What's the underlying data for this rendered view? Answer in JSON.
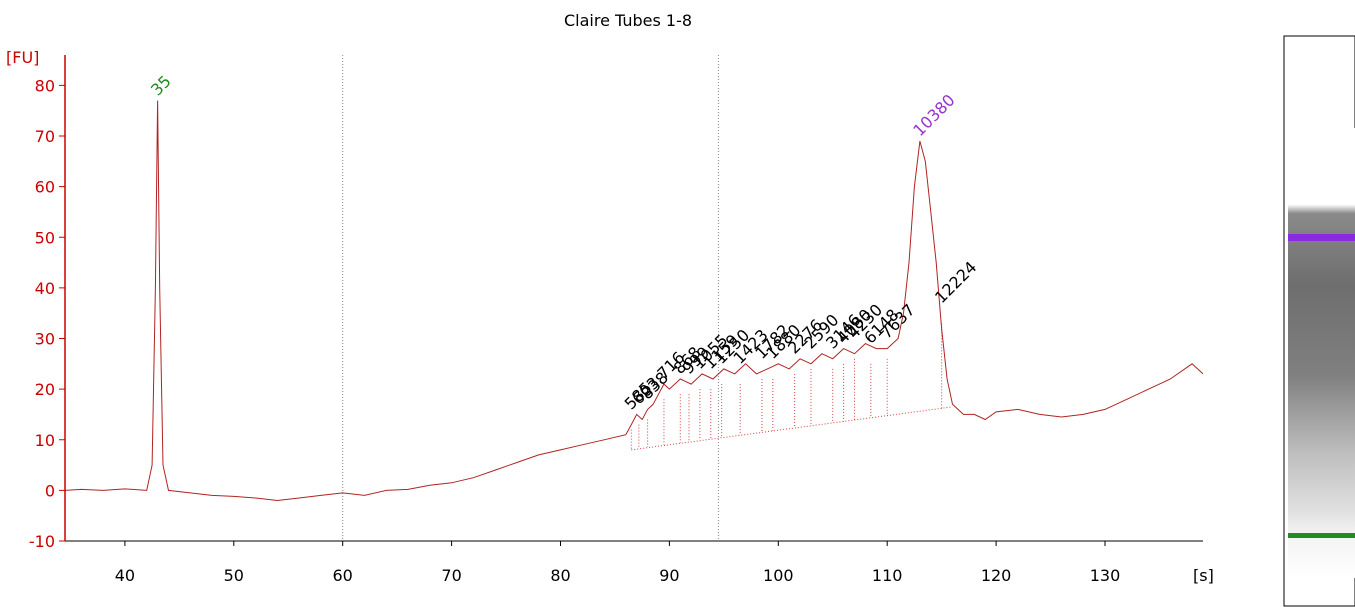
{
  "chart_data": {
    "type": "line",
    "title": "Claire Tubes 1-8",
    "y_unit": "[FU]",
    "x_unit": "[s]",
    "xlim": [
      34.5,
      139
    ],
    "ylim": [
      -10,
      86
    ],
    "x_ticks": [
      "40",
      "50",
      "60",
      "70",
      "80",
      "90",
      "100",
      "110",
      "120",
      "130"
    ],
    "y_ticks": [
      "-10",
      "0",
      "10",
      "20",
      "30",
      "40",
      "50",
      "60",
      "70",
      "80"
    ],
    "x_tick_values": [
      40,
      50,
      60,
      70,
      80,
      90,
      100,
      110,
      120,
      130
    ],
    "y_tick_values": [
      -10,
      0,
      10,
      20,
      30,
      40,
      50,
      60,
      70,
      80
    ],
    "region_markers": [
      60,
      94.5
    ],
    "series": [
      {
        "color": "#b22222",
        "x": [
          34.5,
          36,
          38,
          40,
          42,
          42.5,
          42.8,
          43.0,
          43.2,
          43.5,
          44,
          46,
          48,
          50,
          52,
          54,
          56,
          58,
          60,
          62,
          64,
          66,
          68,
          70,
          72,
          74,
          76,
          78,
          80,
          82,
          84,
          86,
          86.5,
          87,
          87.5,
          88,
          88.5,
          89,
          89.5,
          90,
          91,
          92,
          93,
          94,
          95,
          96,
          97,
          98,
          99,
          100,
          101,
          102,
          103,
          104,
          105,
          106,
          107,
          108,
          109,
          110,
          111,
          111.5,
          112,
          112.5,
          113,
          113.5,
          114,
          114.5,
          115,
          115.5,
          116,
          117,
          118,
          119,
          120,
          122,
          124,
          126,
          128,
          130,
          132,
          134,
          136,
          138,
          139
        ],
        "y": [
          0,
          0.2,
          0,
          0.3,
          0,
          5,
          40,
          77,
          40,
          5,
          0,
          -0.5,
          -1,
          -1.2,
          -1.5,
          -2,
          -1.5,
          -1,
          -0.5,
          -1,
          0,
          0.2,
          1,
          1.5,
          2.5,
          4,
          5.5,
          7,
          8,
          9,
          10,
          11,
          13,
          15,
          14,
          16,
          17,
          19,
          21,
          20,
          22,
          21,
          23,
          22,
          24,
          23,
          25,
          23,
          24,
          25,
          24,
          26,
          25,
          27,
          26,
          28,
          27,
          29,
          28,
          28,
          30,
          35,
          45,
          60,
          69,
          65,
          55,
          45,
          32,
          22,
          17,
          15,
          15,
          14,
          15.5,
          16,
          15,
          14.5,
          15,
          16,
          18,
          20,
          22,
          25,
          23
        ]
      }
    ],
    "peak_labels": [
      {
        "text": "35",
        "x": 43.0,
        "y": 77,
        "color": "#228b22"
      },
      {
        "text": "10380",
        "x": 113.0,
        "y": 69,
        "color": "#9932cc"
      },
      {
        "text": "585",
        "x": 86.5,
        "y": 15,
        "color": "#000000"
      },
      {
        "text": "603",
        "x": 87.2,
        "y": 16,
        "color": "#000000"
      },
      {
        "text": "838",
        "x": 88.0,
        "y": 17,
        "color": "#000000"
      },
      {
        "text": "716",
        "x": 89.5,
        "y": 21,
        "color": "#000000"
      },
      {
        "text": "868",
        "x": 91.0,
        "y": 22,
        "color": "#000000"
      },
      {
        "text": "999",
        "x": 91.8,
        "y": 22,
        "color": "#000000"
      },
      {
        "text": "1055",
        "x": 92.8,
        "y": 23,
        "color": "#000000"
      },
      {
        "text": "1159",
        "x": 93.8,
        "y": 23,
        "color": "#000000"
      },
      {
        "text": "1250",
        "x": 94.8,
        "y": 24,
        "color": "#000000"
      },
      {
        "text": "1423",
        "x": 96.5,
        "y": 24,
        "color": "#000000"
      },
      {
        "text": "1782",
        "x": 98.5,
        "y": 25,
        "color": "#000000"
      },
      {
        "text": "1880",
        "x": 99.5,
        "y": 25,
        "color": "#000000"
      },
      {
        "text": "2276",
        "x": 101.5,
        "y": 26,
        "color": "#000000"
      },
      {
        "text": "2590",
        "x": 103.0,
        "y": 27,
        "color": "#000000"
      },
      {
        "text": "3146",
        "x": 105.0,
        "y": 27,
        "color": "#000000"
      },
      {
        "text": "4080",
        "x": 106.0,
        "y": 28,
        "color": "#000000"
      },
      {
        "text": "4230",
        "x": 107.0,
        "y": 29,
        "color": "#000000"
      },
      {
        "text": "6148",
        "x": 108.5,
        "y": 28,
        "color": "#000000"
      },
      {
        "text": "7637",
        "x": 110.0,
        "y": 29,
        "color": "#000000"
      },
      {
        "text": "12224",
        "x": 115.0,
        "y": 36,
        "color": "#000000"
      }
    ],
    "gel_bands": [
      {
        "color": "#8a2be2",
        "role": "upper-marker"
      },
      {
        "color": "#228b22",
        "role": "lower-marker"
      }
    ]
  }
}
